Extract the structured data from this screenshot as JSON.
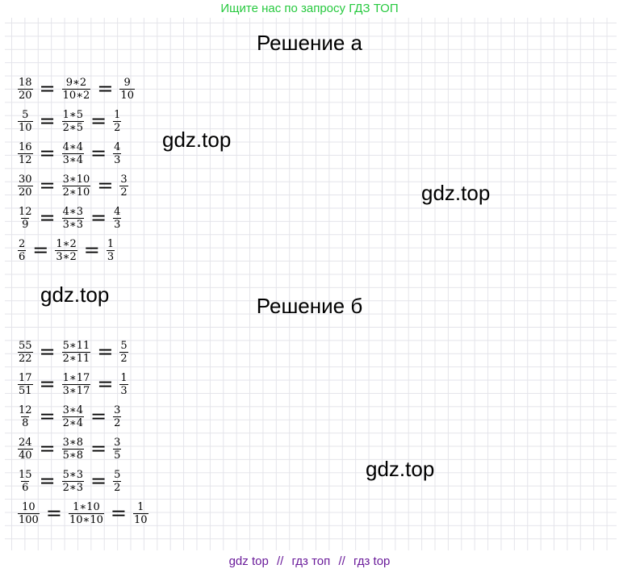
{
  "header": {
    "text": "Ищите нас по запросу ГДЗ ТОП"
  },
  "sections": {
    "a": {
      "title": "Решение а"
    },
    "b": {
      "title": "Решение б"
    }
  },
  "watermarks": [
    "gdz.top",
    "gdz.top",
    "gdz.top",
    "gdz.top"
  ],
  "equations_a": [
    [
      [
        "18",
        "20"
      ],
      [
        "9∗2",
        "10∗2"
      ],
      [
        "9",
        "10"
      ]
    ],
    [
      [
        "5",
        "10"
      ],
      [
        "1∗5",
        "2∗5"
      ],
      [
        "1",
        "2"
      ]
    ],
    [
      [
        "16",
        "12"
      ],
      [
        "4∗4",
        "3∗4"
      ],
      [
        "4",
        "3"
      ]
    ],
    [
      [
        "30",
        "20"
      ],
      [
        "3∗10",
        "2∗10"
      ],
      [
        "3",
        "2"
      ]
    ],
    [
      [
        "12",
        "9"
      ],
      [
        "4∗3",
        "3∗3"
      ],
      [
        "4",
        "3"
      ]
    ],
    [
      [
        "2",
        "6"
      ],
      [
        "1∗2",
        "3∗2"
      ],
      [
        "1",
        "3"
      ]
    ]
  ],
  "equations_b": [
    [
      [
        "55",
        "22"
      ],
      [
        "5∗11",
        "2∗11"
      ],
      [
        "5",
        "2"
      ]
    ],
    [
      [
        "17",
        "51"
      ],
      [
        "1∗17",
        "3∗17"
      ],
      [
        "1",
        "3"
      ]
    ],
    [
      [
        "12",
        "8"
      ],
      [
        "3∗4",
        "2∗4"
      ],
      [
        "3",
        "2"
      ]
    ],
    [
      [
        "24",
        "40"
      ],
      [
        "3∗8",
        "5∗8"
      ],
      [
        "3",
        "5"
      ]
    ],
    [
      [
        "15",
        "6"
      ],
      [
        "5∗3",
        "2∗3"
      ],
      [
        "5",
        "2"
      ]
    ],
    [
      [
        "10",
        "100"
      ],
      [
        "1∗10",
        "10∗10"
      ],
      [
        "1",
        "10"
      ]
    ]
  ],
  "footer": {
    "items": [
      "gdz top",
      "гдз топ",
      "гдз top"
    ],
    "separator": "//"
  }
}
